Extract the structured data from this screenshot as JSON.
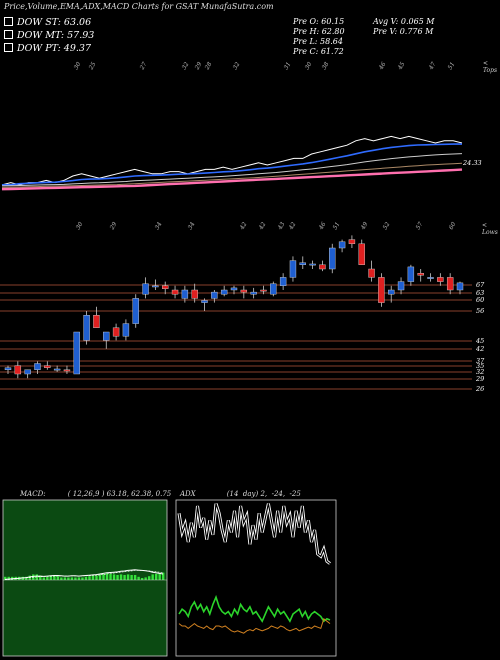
{
  "title": "Price,Volume,EMA,ADX,MACD Charts for GSAT MunafaSutra.com",
  "legend": [
    {
      "label": "DOW ST: 63.06"
    },
    {
      "label": "DOW MT: 57.93"
    },
    {
      "label": "DOW PT: 49.37"
    }
  ],
  "stats": {
    "open": "Pre  O: 60.15",
    "high": "Pre  H: 62.80",
    "low": "Pre  L: 58.64",
    "close": "Pre  C: 61.72",
    "avg_vol": "Avg V: 0.065  M",
    "pre_vol": "Pre  V: 0.776  M"
  },
  "top_label": "< Tops",
  "low_label": "< Lows",
  "ema_end_label": "24.33",
  "macd_title": "MACD:          ( 12,26,9 ) 63.18, 62.38, 0.75",
  "adx_title": "ADX              (14  day) 2,  -24,  -25",
  "colors": {
    "up": "#1f5fd1",
    "down": "#e02020",
    "ema_pink": "#ff6fae",
    "macd_bg": "#0b4a12"
  },
  "chart_data": [
    {
      "type": "candlestick",
      "top_annotations": [
        "30",
        "25",
        "27",
        "32",
        "29",
        "28",
        "32",
        "31",
        "30",
        "38",
        "46",
        "45",
        "47",
        "51"
      ],
      "low_annotations": [
        "30",
        "29",
        "34",
        "34",
        "42",
        "42",
        "43",
        "42",
        "46",
        "51",
        "49",
        "52",
        "57",
        "60"
      ],
      "price_levels": [
        "67",
        "63",
        "60",
        "56",
        "45",
        "42",
        "37",
        "35",
        "32",
        "29",
        "26"
      ],
      "candles": [
        {
          "o": 41,
          "h": 42,
          "l": 40,
          "c": 41.5
        },
        {
          "o": 42,
          "h": 43,
          "l": 39,
          "c": 40
        },
        {
          "o": 40,
          "h": 41,
          "l": 39,
          "c": 41
        },
        {
          "o": 41,
          "h": 43,
          "l": 40,
          "c": 42.5
        },
        {
          "o": 42,
          "h": 43,
          "l": 41,
          "c": 41.5
        },
        {
          "o": 41,
          "h": 42,
          "l": 40.5,
          "c": 41.2
        },
        {
          "o": 41,
          "h": 42,
          "l": 40,
          "c": 40.8
        },
        {
          "o": 40,
          "h": 50,
          "l": 40,
          "c": 50
        },
        {
          "o": 48,
          "h": 55,
          "l": 47,
          "c": 54
        },
        {
          "o": 54,
          "h": 56,
          "l": 51,
          "c": 51
        },
        {
          "o": 48,
          "h": 50,
          "l": 46,
          "c": 50
        },
        {
          "o": 51,
          "h": 52,
          "l": 48,
          "c": 49
        },
        {
          "o": 49,
          "h": 53,
          "l": 48,
          "c": 52
        },
        {
          "o": 52,
          "h": 59,
          "l": 51,
          "c": 58
        },
        {
          "o": 59,
          "h": 63,
          "l": 58,
          "c": 61.5
        },
        {
          "o": 61,
          "h": 62.5,
          "l": 60,
          "c": 61
        },
        {
          "o": 61,
          "h": 62,
          "l": 59,
          "c": 60.3
        },
        {
          "o": 60,
          "h": 61,
          "l": 58,
          "c": 59
        },
        {
          "o": 58,
          "h": 61,
          "l": 57,
          "c": 60
        },
        {
          "o": 60,
          "h": 61.5,
          "l": 57,
          "c": 58
        },
        {
          "o": 57,
          "h": 58,
          "l": 55,
          "c": 57.5
        },
        {
          "o": 58,
          "h": 60,
          "l": 57,
          "c": 59.5
        },
        {
          "o": 59,
          "h": 61,
          "l": 58.5,
          "c": 60
        },
        {
          "o": 60,
          "h": 61,
          "l": 59,
          "c": 60.5
        },
        {
          "o": 60,
          "h": 61,
          "l": 58,
          "c": 59.5
        },
        {
          "o": 59,
          "h": 60.5,
          "l": 58,
          "c": 59.5
        },
        {
          "o": 60,
          "h": 61,
          "l": 59,
          "c": 59.8
        },
        {
          "o": 59,
          "h": 62,
          "l": 58.5,
          "c": 61.5
        },
        {
          "o": 61,
          "h": 64,
          "l": 60,
          "c": 63
        },
        {
          "o": 63,
          "h": 68,
          "l": 62,
          "c": 67
        },
        {
          "o": 66,
          "h": 68,
          "l": 65,
          "c": 66.5
        },
        {
          "o": 66,
          "h": 67,
          "l": 65,
          "c": 66.2
        },
        {
          "o": 66,
          "h": 67,
          "l": 64.5,
          "c": 65
        },
        {
          "o": 65,
          "h": 71,
          "l": 64,
          "c": 70
        },
        {
          "o": 70,
          "h": 72,
          "l": 69,
          "c": 71.5
        },
        {
          "o": 72,
          "h": 73,
          "l": 70,
          "c": 71
        },
        {
          "o": 71,
          "h": 72,
          "l": 66,
          "c": 66
        },
        {
          "o": 65,
          "h": 67,
          "l": 62,
          "c": 63
        },
        {
          "o": 63,
          "h": 64,
          "l": 56,
          "c": 57
        },
        {
          "o": 59,
          "h": 61,
          "l": 57,
          "c": 60
        },
        {
          "o": 60,
          "h": 63,
          "l": 59,
          "c": 62
        },
        {
          "o": 62,
          "h": 66,
          "l": 61,
          "c": 65.5
        },
        {
          "o": 64,
          "h": 65,
          "l": 62,
          "c": 63.5
        },
        {
          "o": 63,
          "h": 64,
          "l": 62,
          "c": 63
        },
        {
          "o": 63,
          "h": 64,
          "l": 61,
          "c": 62
        },
        {
          "o": 63,
          "h": 64,
          "l": 59,
          "c": 60
        },
        {
          "o": 60,
          "h": 62,
          "l": 59,
          "c": 61.7
        }
      ]
    },
    {
      "type": "line",
      "name_hidden": true,
      "series": [
        {
          "key": "price",
          "values": [
            26,
            27,
            26,
            27,
            27,
            28,
            27,
            28,
            30,
            31,
            30,
            29,
            30,
            31,
            32,
            33,
            32,
            31,
            31,
            32,
            32,
            31,
            32,
            33,
            33,
            34,
            33,
            34,
            35,
            36,
            35,
            36,
            37,
            38,
            38,
            40,
            41,
            42,
            43,
            44,
            46,
            47,
            46,
            47,
            48,
            47,
            48,
            47,
            46,
            45,
            46,
            46,
            45
          ]
        },
        {
          "key": "ema_fast",
          "values": [
            26,
            26,
            26.5,
            26.7,
            26.9,
            27.1,
            27.2,
            27.5,
            27.9,
            28.4,
            28.6,
            28.7,
            28.9,
            29.2,
            29.6,
            30,
            30.2,
            30.3,
            30.4,
            30.6,
            30.8,
            30.9,
            31.1,
            31.3,
            31.6,
            31.9,
            32.1,
            32.4,
            32.8,
            33.3,
            33.6,
            34,
            34.5,
            35,
            35.5,
            36.1,
            36.8,
            37.6,
            38.4,
            39.2,
            40.1,
            41,
            41.7,
            42.4,
            43,
            43.4,
            43.8,
            44.1,
            44.2,
            44.3,
            44.4,
            44.5,
            44.5
          ]
        },
        {
          "key": "ema_mid",
          "values": [
            25.5,
            25.6,
            25.7,
            25.8,
            25.9,
            26,
            26.1,
            26.2,
            26.4,
            26.6,
            26.8,
            26.9,
            27.1,
            27.3,
            27.5,
            27.8,
            28,
            28.2,
            28.4,
            28.6,
            28.8,
            29,
            29.2,
            29.4,
            29.6,
            29.8,
            30.1,
            30.4,
            30.7,
            31,
            31.3,
            31.6,
            32,
            32.4,
            32.8,
            33.2,
            33.7,
            34.2,
            34.7,
            35.2,
            35.8,
            36.4,
            36.9,
            37.4,
            37.9,
            38.3,
            38.7,
            39,
            39.3,
            39.6,
            39.8,
            40,
            40.2
          ]
        },
        {
          "key": "ema_slow",
          "values": [
            24.8,
            24.9,
            25,
            25.1,
            25.2,
            25.3,
            25.4,
            25.5,
            25.6,
            25.7,
            25.8,
            25.9,
            26,
            26.1,
            26.3,
            26.5,
            26.7,
            26.9,
            27.1,
            27.3,
            27.5,
            27.7,
            27.9,
            28.1,
            28.3,
            28.5,
            28.7,
            28.9,
            29.1,
            29.3,
            29.6,
            29.9,
            30.2,
            30.5,
            30.8,
            31.1,
            31.4,
            31.7,
            32,
            32.3,
            32.6,
            32.9,
            33.2,
            33.5,
            33.8,
            34.1,
            34.4,
            34.7,
            35,
            35.2,
            35.4,
            35.6,
            35.8
          ]
        },
        {
          "key": "ema_pink",
          "values": [
            24,
            24.1,
            24.2,
            24.3,
            24.4,
            24.5,
            24.6,
            24.7,
            24.8,
            24.9,
            25,
            25.1,
            25.2,
            25.3,
            25.4,
            25.5,
            25.7,
            25.9,
            26.1,
            26.3,
            26.5,
            26.7,
            26.9,
            27.1,
            27.3,
            27.5,
            27.7,
            27.9,
            28.1,
            28.3,
            28.5,
            28.7,
            28.9,
            29.1,
            29.3,
            29.5,
            29.7,
            29.9,
            30.1,
            30.3,
            30.5,
            30.7,
            30.9,
            31.1,
            31.3,
            31.5,
            31.7,
            31.9,
            32.1,
            32.3,
            32.5,
            32.7,
            32.9
          ]
        }
      ]
    },
    {
      "type": "line",
      "panel": "macd",
      "series": [
        {
          "key": "macd",
          "values": [
            2,
            3,
            4,
            5,
            6,
            7,
            8,
            10,
            12,
            13,
            13,
            12,
            13,
            14,
            15,
            15,
            14,
            13,
            13,
            14,
            14,
            13,
            14,
            15,
            16,
            17,
            18,
            20,
            22,
            24,
            25,
            26,
            27,
            29,
            30,
            32,
            33,
            34,
            33,
            32,
            31,
            29,
            26,
            24,
            22,
            20
          ]
        },
        {
          "key": "signal",
          "values": [
            1,
            2,
            3,
            4,
            5,
            6,
            7,
            8,
            9,
            10,
            11,
            11.5,
            12,
            12.5,
            13,
            13.5,
            13.6,
            13.5,
            13.4,
            13.5,
            13.6,
            13.5,
            13.6,
            14,
            14.5,
            15,
            16,
            17,
            18.5,
            20,
            21.5,
            23,
            24.5,
            26,
            27.5,
            29,
            30.5,
            31.5,
            32,
            32,
            31.5,
            30.5,
            29,
            27.5,
            26,
            24.5
          ]
        }
      ]
    },
    {
      "type": "line",
      "panel": "adx",
      "series": [
        {
          "key": "di_white",
          "values": [
            64,
            48,
            55,
            40,
            56,
            44,
            70,
            52,
            60,
            42,
            58,
            46,
            72,
            64,
            50,
            40,
            58,
            48,
            66,
            44,
            70,
            56,
            62,
            38,
            54,
            42,
            64,
            48,
            60,
            72,
            58,
            44,
            66,
            48,
            70,
            56,
            62,
            44,
            66,
            52,
            70,
            48,
            58,
            40,
            50,
            30,
            28,
            34,
            24,
            22
          ]
        },
        {
          "key": "adx_green",
          "values": [
            -20,
            -16,
            -18,
            -22,
            -14,
            -10,
            -16,
            -12,
            -18,
            -14,
            -20,
            -12,
            -6,
            -14,
            -18,
            -20,
            -18,
            -22,
            -16,
            -20,
            -12,
            -16,
            -18,
            -14,
            -20,
            -18,
            -22,
            -26,
            -20,
            -14,
            -18,
            -22,
            -16,
            -20,
            -18,
            -22,
            -26,
            -20,
            -18,
            -16,
            -22,
            -18,
            -24,
            -20,
            -18,
            -20,
            -22,
            -26,
            -24,
            -25
          ]
        },
        {
          "key": "di_orange",
          "values": [
            -28,
            -30,
            -30,
            -32,
            -30,
            -28,
            -30,
            -31,
            -32,
            -30,
            -32,
            -33,
            -30,
            -30,
            -31,
            -30,
            -32,
            -34,
            -35,
            -34,
            -35,
            -36,
            -34,
            -33,
            -34,
            -32,
            -33,
            -34,
            -33,
            -32,
            -30,
            -31,
            -32,
            -30,
            -31,
            -33,
            -34,
            -33,
            -32,
            -34,
            -33,
            -32,
            -31,
            -32,
            -30,
            -31,
            -32,
            -24,
            -26,
            -28
          ]
        }
      ]
    }
  ]
}
